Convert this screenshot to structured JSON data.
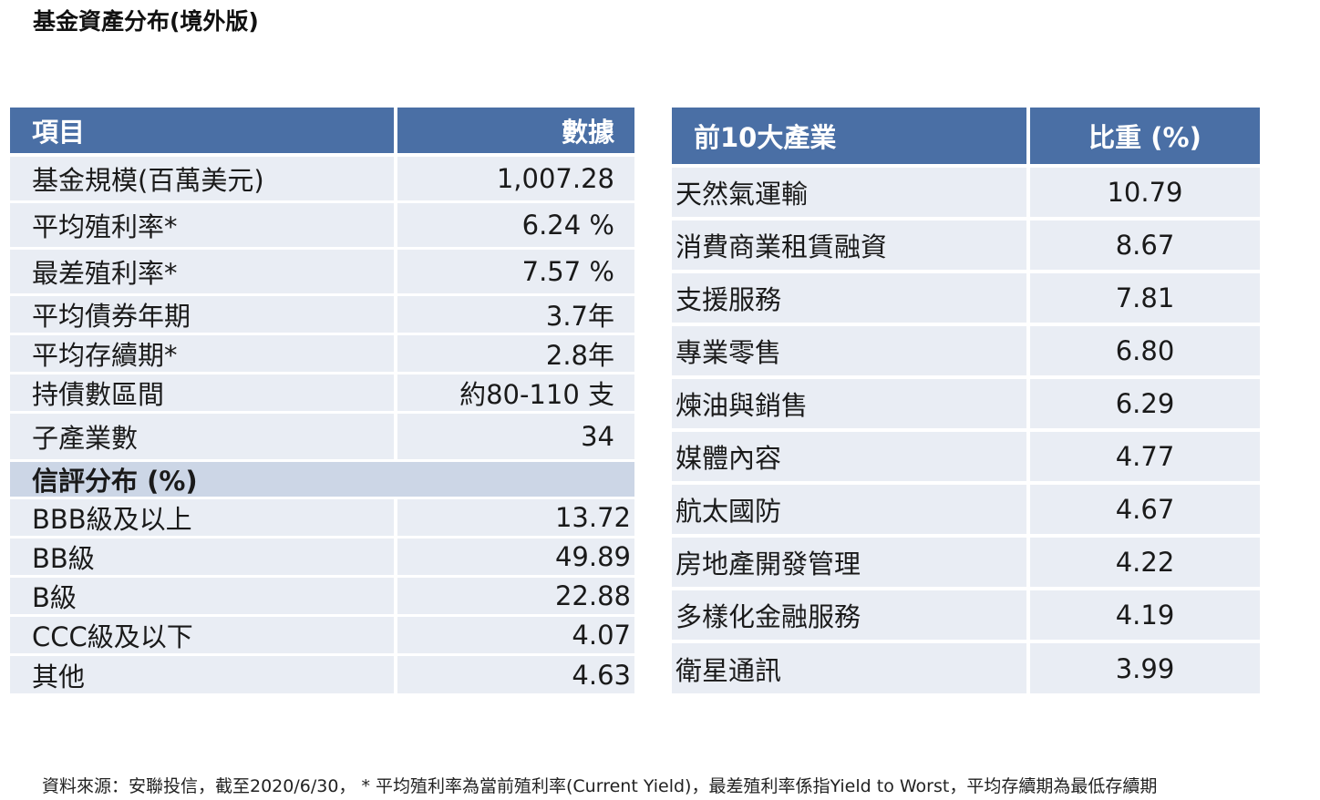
{
  "title": "基金資產分布(境外版)",
  "left_table": {
    "headers": [
      "項目",
      "數據"
    ],
    "rows": [
      {
        "label": "基金規模(百萬美元)",
        "value": "1,007.28"
      },
      {
        "label": "平均殖利率*",
        "value": "6.24 %"
      },
      {
        "label": "最差殖利率*",
        "value": "7.57 %"
      },
      {
        "label": "平均債券年期",
        "value": "3.7年"
      },
      {
        "label": "平均存續期*",
        "value": "2.8年"
      },
      {
        "label": "持債數區間",
        "value": "約80-110 支"
      },
      {
        "label": "子產業數",
        "value": "34"
      }
    ],
    "credit_title": "信評分布 (%)",
    "credit_rows": [
      {
        "label": "BBB級及以上",
        "value": "13.72"
      },
      {
        "label": "BB級",
        "value": "49.89"
      },
      {
        "label": "B級",
        "value": "22.88"
      },
      {
        "label": "CCC級及以下",
        "value": "4.07"
      },
      {
        "label": "其他",
        "value": "4.63"
      }
    ]
  },
  "right_table": {
    "headers": [
      "前10大產業",
      "比重 (%)"
    ],
    "rows": [
      {
        "label": "天然氣運輸",
        "value": "10.79"
      },
      {
        "label": "消費商業租賃融資",
        "value": "8.67"
      },
      {
        "label": "支援服務",
        "value": "7.81"
      },
      {
        "label": "專業零售",
        "value": "6.80"
      },
      {
        "label": "煉油與銷售",
        "value": "6.29"
      },
      {
        "label": "媒體內容",
        "value": "4.77"
      },
      {
        "label": "航太國防",
        "value": "4.67"
      },
      {
        "label": "房地產開發管理",
        "value": "4.22"
      },
      {
        "label": "多樣化金融服務",
        "value": "4.19"
      },
      {
        "label": "衛星通訊",
        "value": "3.99"
      }
    ]
  },
  "footer": "資料來源：安聯投信，截至2020/6/30， * 平均殖利率為當前殖利率(Current Yield)，最差殖利率係指Yield to Worst，平均存續期為最低存續期",
  "colors": {
    "header_bg": "#4a6fa5",
    "row_bg": "#e9edf4",
    "subheader_bg": "#ccd6e6"
  }
}
